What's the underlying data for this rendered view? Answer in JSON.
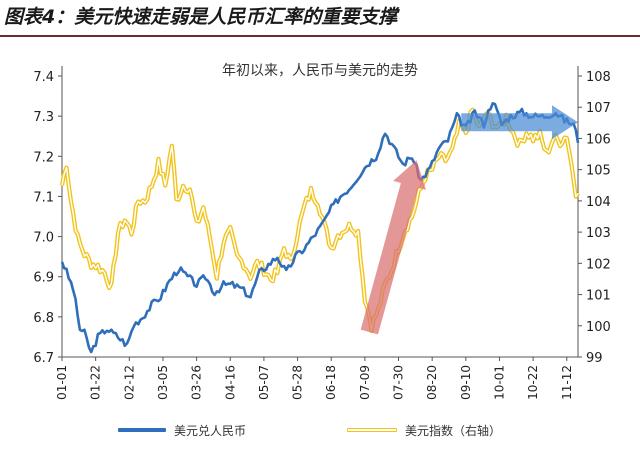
{
  "header": {
    "title": "图表4：美元快速走弱是人民币汇率的重要支撑"
  },
  "chart_data": {
    "type": "line",
    "title": "年初以来，人民币与美元的走势",
    "x_tick_labels": [
      "01-01",
      "01-22",
      "02-12",
      "03-05",
      "03-26",
      "04-16",
      "05-07",
      "05-28",
      "06-18",
      "07-09",
      "07-30",
      "08-20",
      "09-10",
      "10-01",
      "10-22",
      "11-12"
    ],
    "x_tick_start_index": 0,
    "x_tick_step": 15,
    "n_points": 230,
    "y_left": {
      "min": 6.7,
      "max": 7.4,
      "ticks": [
        "6.7",
        "6.8",
        "6.9",
        "7.0",
        "7.1",
        "7.2",
        "7.3",
        "7.4"
      ]
    },
    "y_right": {
      "min": 99,
      "max": 108,
      "ticks": [
        "99",
        "100",
        "101",
        "102",
        "103",
        "104",
        "105",
        "106",
        "107",
        "108"
      ]
    },
    "grid": false,
    "legend_position": "bottom",
    "series": [
      {
        "name": "美元兑人民币",
        "axis": "left",
        "color": "#2f6eba",
        "anchors": [
          [
            0,
            6.94
          ],
          [
            5,
            6.87
          ],
          [
            8,
            6.77
          ],
          [
            10,
            6.76
          ],
          [
            13,
            6.71
          ],
          [
            16,
            6.75
          ],
          [
            20,
            6.77
          ],
          [
            25,
            6.75
          ],
          [
            29,
            6.73
          ],
          [
            32,
            6.78
          ],
          [
            36,
            6.8
          ],
          [
            40,
            6.83
          ],
          [
            44,
            6.85
          ],
          [
            48,
            6.89
          ],
          [
            52,
            6.92
          ],
          [
            56,
            6.9
          ],
          [
            60,
            6.88
          ],
          [
            64,
            6.9
          ],
          [
            68,
            6.86
          ],
          [
            72,
            6.88
          ],
          [
            76,
            6.88
          ],
          [
            80,
            6.87
          ],
          [
            84,
            6.85
          ],
          [
            88,
            6.91
          ],
          [
            92,
            6.93
          ],
          [
            96,
            6.95
          ],
          [
            100,
            6.91
          ],
          [
            104,
            6.95
          ],
          [
            108,
            6.97
          ],
          [
            112,
            7.0
          ],
          [
            116,
            7.03
          ],
          [
            120,
            7.07
          ],
          [
            124,
            7.1
          ],
          [
            128,
            7.12
          ],
          [
            132,
            7.15
          ],
          [
            136,
            7.18
          ],
          [
            140,
            7.2
          ],
          [
            144,
            7.26
          ],
          [
            148,
            7.22
          ],
          [
            152,
            7.18
          ],
          [
            156,
            7.2
          ],
          [
            160,
            7.14
          ],
          [
            164,
            7.17
          ],
          [
            168,
            7.22
          ],
          [
            172,
            7.24
          ],
          [
            176,
            7.3
          ],
          [
            180,
            7.27
          ],
          [
            184,
            7.31
          ],
          [
            188,
            7.28
          ],
          [
            192,
            7.34
          ],
          [
            196,
            7.28
          ],
          [
            200,
            7.3
          ],
          [
            205,
            7.31
          ],
          [
            210,
            7.3
          ],
          [
            215,
            7.3
          ],
          [
            220,
            7.31
          ],
          [
            224,
            7.29
          ],
          [
            228,
            7.28
          ],
          [
            230,
            7.24
          ]
        ]
      },
      {
        "name": "美元指数（右轴）",
        "axis": "right",
        "color": "#f2c318",
        "anchors": [
          [
            0,
            104.5
          ],
          [
            2,
            105.2
          ],
          [
            4,
            104.0
          ],
          [
            7,
            102.8
          ],
          [
            10,
            102.3
          ],
          [
            13,
            102.0
          ],
          [
            16,
            101.9
          ],
          [
            19,
            101.7
          ],
          [
            22,
            101.2
          ],
          [
            25,
            103.0
          ],
          [
            28,
            103.4
          ],
          [
            31,
            103.0
          ],
          [
            34,
            104.0
          ],
          [
            37,
            104.0
          ],
          [
            40,
            104.5
          ],
          [
            43,
            105.2
          ],
          [
            46,
            104.5
          ],
          [
            49,
            105.8
          ],
          [
            51,
            104.0
          ],
          [
            54,
            104.5
          ],
          [
            57,
            104.4
          ],
          [
            60,
            103.2
          ],
          [
            63,
            103.8
          ],
          [
            66,
            102.8
          ],
          [
            69,
            101.6
          ],
          [
            72,
            102.7
          ],
          [
            75,
            103.0
          ],
          [
            78,
            102.2
          ],
          [
            81,
            102.0
          ],
          [
            84,
            101.6
          ],
          [
            87,
            102.0
          ],
          [
            90,
            101.8
          ],
          [
            93,
            101.5
          ],
          [
            96,
            101.7
          ],
          [
            99,
            102.5
          ],
          [
            102,
            102.0
          ],
          [
            105,
            103.0
          ],
          [
            108,
            103.8
          ],
          [
            111,
            104.3
          ],
          [
            114,
            104.0
          ],
          [
            117,
            103.2
          ],
          [
            120,
            102.5
          ],
          [
            123,
            102.9
          ],
          [
            126,
            103.1
          ],
          [
            129,
            103.2
          ],
          [
            132,
            103.0
          ],
          [
            135,
            100.9
          ],
          [
            138,
            100.0
          ],
          [
            141,
            100.5
          ],
          [
            144,
            101.3
          ],
          [
            147,
            101.8
          ],
          [
            150,
            102.5
          ],
          [
            153,
            103.1
          ],
          [
            156,
            103.5
          ],
          [
            159,
            104.2
          ],
          [
            162,
            104.8
          ],
          [
            165,
            105.0
          ],
          [
            168,
            105.4
          ],
          [
            171,
            105.3
          ],
          [
            174,
            105.6
          ],
          [
            177,
            106.4
          ],
          [
            180,
            106.2
          ],
          [
            183,
            106.9
          ],
          [
            186,
            106.3
          ],
          [
            189,
            106.8
          ],
          [
            192,
            106.5
          ],
          [
            195,
            106.3
          ],
          [
            198,
            106.7
          ],
          [
            201,
            106.2
          ],
          [
            204,
            105.8
          ],
          [
            207,
            106.2
          ],
          [
            210,
            106.0
          ],
          [
            213,
            106.1
          ],
          [
            216,
            105.5
          ],
          [
            219,
            106.0
          ],
          [
            222,
            105.9
          ],
          [
            225,
            106.1
          ],
          [
            227,
            105.2
          ],
          [
            229,
            104.3
          ],
          [
            230,
            104.4
          ]
        ]
      }
    ],
    "annotations": [
      {
        "type": "arrow",
        "color": "#d96f6f",
        "from": [
          137,
          99.8
        ],
        "to": [
          158,
          105.3
        ]
      },
      {
        "type": "arrow",
        "color": "#4a8ad6",
        "from": [
          178,
          7.285
        ],
        "to": [
          230,
          7.285
        ]
      }
    ]
  }
}
